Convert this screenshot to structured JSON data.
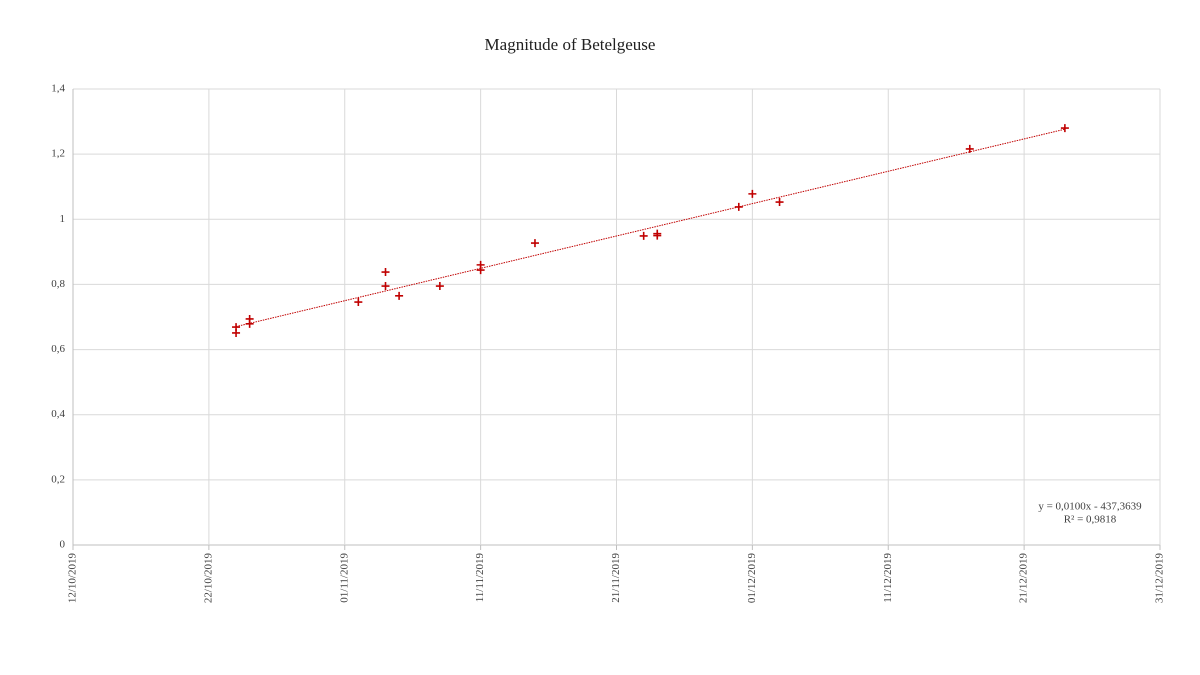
{
  "chart_data": {
    "type": "scatter",
    "title": "Magnitude of Betelgeuse",
    "x": [
      "24/10/2019",
      "24/10/2019",
      "25/10/2019",
      "25/10/2019",
      "02/11/2019",
      "04/11/2019",
      "04/11/2019",
      "05/11/2019",
      "08/11/2019",
      "11/11/2019",
      "11/11/2019",
      "15/11/2019",
      "23/11/2019",
      "24/11/2019",
      "24/11/2019",
      "30/11/2019",
      "01/12/2019",
      "03/12/2019",
      "17/12/2019",
      "24/12/2019"
    ],
    "values": [
      0.669,
      0.651,
      0.694,
      0.679,
      0.746,
      0.838,
      0.795,
      0.765,
      0.795,
      0.86,
      0.844,
      0.927,
      0.949,
      0.956,
      0.95,
      1.038,
      1.078,
      1.053,
      1.216,
      1.28
    ],
    "color": "#c00000",
    "trendline": true,
    "trendline_labels": [
      "y = 0,0100x - 437,3639",
      "R² = 0,9818"
    ],
    "xlim": [
      "12/10/2019",
      "31/12/2019"
    ],
    "xticks": [
      "12/10/2019",
      "22/10/2019",
      "01/11/2019",
      "11/11/2019",
      "21/11/2019",
      "01/12/2019",
      "11/12/2019",
      "21/12/2019",
      "31/12/2019"
    ],
    "ylim": [
      0,
      1.4
    ],
    "yticks": [
      0,
      {
        "value": 0.2,
        "label": "0,2"
      },
      {
        "value": 0.4,
        "label": "0,4"
      },
      {
        "value": 0.6,
        "label": "0,6"
      },
      {
        "value": 0.8,
        "label": "0,8"
      },
      1,
      {
        "value": 1.2,
        "label": "1,2"
      },
      {
        "value": 1.4,
        "label": "1,4"
      }
    ],
    "grid": true
  }
}
